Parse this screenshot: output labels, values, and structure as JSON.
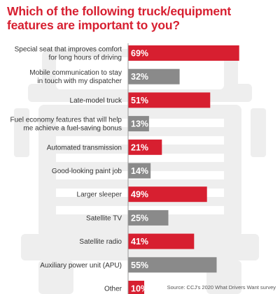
{
  "title": "Which of the following truck/equipment features are important to you?",
  "source": "Source: CCJ's 2020 What Drivers Want survey",
  "colors": {
    "highlight": "#d71f30",
    "neutral": "#8a8a8a",
    "watermark": "#ededed"
  },
  "watermark_icon": "truck-front-icon",
  "chart_data": {
    "type": "bar",
    "orientation": "horizontal",
    "categories": [
      [
        "Special seat that improves comfort",
        "for long hours of driving"
      ],
      [
        "Mobile communication to stay",
        "in touch with my dispatcher"
      ],
      [
        "Late-model truck"
      ],
      [
        "Fuel economy features that will help",
        "me achieve a fuel-saving bonus"
      ],
      [
        "Automated transmission"
      ],
      [
        "Good-looking paint job"
      ],
      [
        "Larger sleeper"
      ],
      [
        "Satellite TV"
      ],
      [
        "Satellite radio"
      ],
      [
        "Auxiliary power unit (APU)"
      ],
      [
        "Other"
      ]
    ],
    "values": [
      69,
      32,
      51,
      13,
      21,
      14,
      49,
      25,
      41,
      55,
      10
    ],
    "value_labels": [
      "69%",
      "32%",
      "51%",
      "13%",
      "21%",
      "14%",
      "49%",
      "25%",
      "41%",
      "55%",
      "10%"
    ],
    "bar_colors": [
      "highlight",
      "neutral",
      "highlight",
      "neutral",
      "highlight",
      "neutral",
      "highlight",
      "neutral",
      "highlight",
      "neutral",
      "highlight"
    ],
    "xlim": [
      0,
      100
    ],
    "grid": false,
    "legend": "none"
  }
}
